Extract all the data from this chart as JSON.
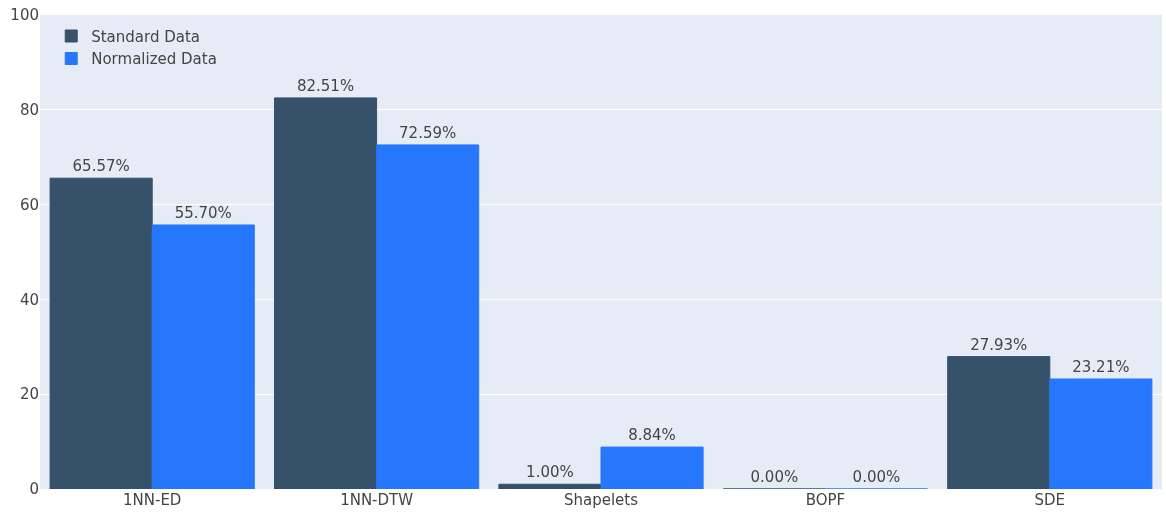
{
  "chart_data": {
    "type": "bar",
    "categories": [
      "1NN-ED",
      "1NN-DTW",
      "Shapelets",
      "BOPF",
      "SDE"
    ],
    "series": [
      {
        "name": "Standard Data",
        "color": "#36516a",
        "values": [
          65.57,
          82.51,
          1.0,
          0.0,
          27.93
        ],
        "value_labels": [
          "65.57%",
          "82.51%",
          "1.00%",
          "0.00%",
          "27.93%"
        ]
      },
      {
        "name": "Normalized Data",
        "color": "#2677fc",
        "values": [
          55.7,
          72.59,
          8.84,
          0.0,
          23.21
        ],
        "value_labels": [
          "55.70%",
          "72.59%",
          "8.84%",
          "0.00%",
          "23.21%"
        ]
      }
    ],
    "ylim": [
      0,
      100
    ],
    "yticks": [
      0,
      20,
      40,
      60,
      80,
      100
    ],
    "grid": "y",
    "legend": "top left"
  }
}
